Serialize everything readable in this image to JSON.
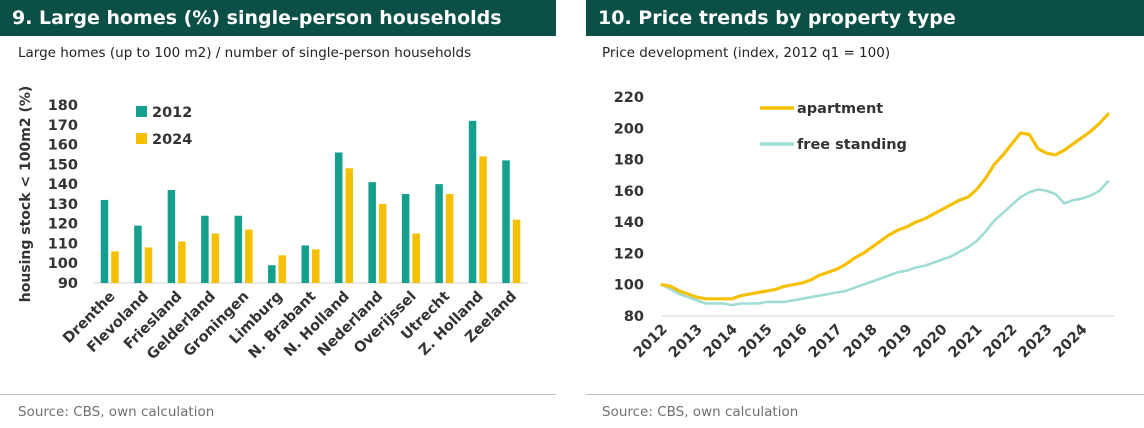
{
  "panels": [
    {
      "title": "9. Large homes (%) single-person households",
      "subtitle": "Large homes (up to 100 m2) / number of single-person households",
      "source": "Source: CBS, own calculation"
    },
    {
      "title": "10. Price trends by property type",
      "subtitle": "Price development (index, 2012 q1 = 100)",
      "source": "Source: CBS, own calculation"
    }
  ],
  "colors": {
    "header_bg": "#0b4f46",
    "teal": "#14a08c",
    "yellow": "#f5c000",
    "light_teal": "#9fdcd6",
    "axis_text": "#333333"
  },
  "chart_data": [
    {
      "type": "bar",
      "title": "9. Large homes (%) single-person households",
      "subtitle": "Large homes (up to 100 m2) / number of single-person households",
      "ylabel": "housing stock < 100m2 (%)",
      "xlabel": "",
      "ylim": [
        90,
        180
      ],
      "yticks": [
        90,
        100,
        110,
        120,
        130,
        140,
        150,
        160,
        170,
        180
      ],
      "categories": [
        "Drenthe",
        "Flevoland",
        "Friesland",
        "Gelderland",
        "Groningen",
        "Limburg",
        "N. Brabant",
        "N. Holland",
        "Nederland",
        "Overijssel",
        "Utrecht",
        "Z. Holland",
        "Zeeland"
      ],
      "series": [
        {
          "name": "2012",
          "color": "#14a08c",
          "values": [
            132,
            119,
            137,
            124,
            124,
            99,
            109,
            156,
            141,
            135,
            140,
            172,
            152
          ]
        },
        {
          "name": "2024",
          "color": "#f5c000",
          "values": [
            106,
            108,
            111,
            115,
            117,
            104,
            107,
            148,
            130,
            115,
            135,
            154,
            122
          ]
        }
      ],
      "legend": "top-left",
      "grid": false
    },
    {
      "type": "line",
      "title": "10. Price trends by property type",
      "subtitle": "Price development (index, 2012 q1 = 100)",
      "xlabel": "",
      "ylabel": "",
      "ylim": [
        80,
        220
      ],
      "yticks": [
        80,
        100,
        120,
        140,
        160,
        180,
        200,
        220
      ],
      "xlim": [
        2012,
        2024.75
      ],
      "xticks": [
        "2012",
        "2013",
        "2014",
        "2015",
        "2016",
        "2017",
        "2018",
        "2019",
        "2020",
        "2021",
        "2022",
        "2023",
        "2024"
      ],
      "series": [
        {
          "name": "apartment",
          "color": "#f5c000",
          "x": [
            2012,
            2012.25,
            2012.5,
            2012.75,
            2013,
            2013.25,
            2013.5,
            2013.75,
            2014,
            2014.25,
            2014.5,
            2014.75,
            2015,
            2015.25,
            2015.5,
            2015.75,
            2016,
            2016.25,
            2016.5,
            2016.75,
            2017,
            2017.25,
            2017.5,
            2017.75,
            2018,
            2018.25,
            2018.5,
            2018.75,
            2019,
            2019.25,
            2019.5,
            2019.75,
            2020,
            2020.25,
            2020.5,
            2020.75,
            2021,
            2021.25,
            2021.5,
            2021.75,
            2022,
            2022.25,
            2022.5,
            2022.75,
            2023,
            2023.25,
            2023.5,
            2023.75,
            2024,
            2024.25,
            2024.5,
            2024.75
          ],
          "values": [
            100,
            99,
            96,
            94,
            92,
            91,
            91,
            91,
            91,
            93,
            94,
            95,
            96,
            97,
            99,
            100,
            101,
            103,
            106,
            108,
            110,
            113,
            117,
            120,
            124,
            128,
            132,
            135,
            137,
            140,
            142,
            145,
            148,
            151,
            154,
            156,
            161,
            168,
            177,
            183,
            190,
            197,
            196,
            187,
            184,
            183,
            186,
            190,
            194,
            198,
            203,
            209
          ]
        },
        {
          "name": "free standing",
          "color": "#9fdcd6",
          "x": [
            2012,
            2012.25,
            2012.5,
            2012.75,
            2013,
            2013.25,
            2013.5,
            2013.75,
            2014,
            2014.25,
            2014.5,
            2014.75,
            2015,
            2015.25,
            2015.5,
            2015.75,
            2016,
            2016.25,
            2016.5,
            2016.75,
            2017,
            2017.25,
            2017.5,
            2017.75,
            2018,
            2018.25,
            2018.5,
            2018.75,
            2019,
            2019.25,
            2019.5,
            2019.75,
            2020,
            2020.25,
            2020.5,
            2020.75,
            2021,
            2021.25,
            2021.5,
            2021.75,
            2022,
            2022.25,
            2022.5,
            2022.75,
            2023,
            2023.25,
            2023.5,
            2023.75,
            2024,
            2024.25,
            2024.5,
            2024.75
          ],
          "values": [
            100,
            97,
            94,
            92,
            90,
            88,
            88,
            88,
            87,
            88,
            88,
            88,
            89,
            89,
            89,
            90,
            91,
            92,
            93,
            94,
            95,
            96,
            98,
            100,
            102,
            104,
            106,
            108,
            109,
            111,
            112,
            114,
            116,
            118,
            121,
            124,
            128,
            134,
            141,
            146,
            151,
            156,
            159,
            161,
            160,
            158,
            152,
            154,
            155,
            157,
            160,
            166
          ]
        }
      ],
      "legend": "top-left",
      "grid": false
    }
  ]
}
